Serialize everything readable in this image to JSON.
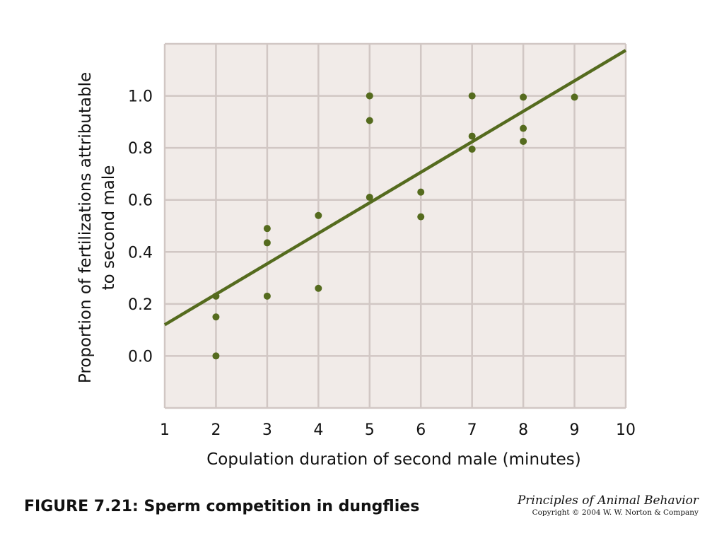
{
  "chart_data": {
    "type": "scatter",
    "xlabel": "Copulation duration of second male (minutes)",
    "ylabel_lines": [
      "Proportion of fertilizations attributable",
      "to second male"
    ],
    "xlim": [
      1,
      10
    ],
    "ylim": [
      -0.2,
      1.2
    ],
    "x_ticks": [
      1,
      2,
      3,
      4,
      5,
      6,
      7,
      8,
      9,
      10
    ],
    "y_ticks": [
      0.0,
      0.2,
      0.4,
      0.6,
      0.8,
      1.0
    ],
    "y_tick_labels": [
      "0.0",
      "0.2",
      "0.4",
      "0.6",
      "0.8",
      "1.0"
    ],
    "grid": true,
    "points": [
      {
        "x": 2,
        "y": 0.23
      },
      {
        "x": 2,
        "y": 0.15
      },
      {
        "x": 2,
        "y": 0.0
      },
      {
        "x": 3,
        "y": 0.49
      },
      {
        "x": 3,
        "y": 0.435
      },
      {
        "x": 3,
        "y": 0.23
      },
      {
        "x": 4,
        "y": 0.54
      },
      {
        "x": 4,
        "y": 0.26
      },
      {
        "x": 5,
        "y": 1.0
      },
      {
        "x": 5,
        "y": 0.905
      },
      {
        "x": 5,
        "y": 0.61
      },
      {
        "x": 6,
        "y": 0.63
      },
      {
        "x": 6,
        "y": 0.535
      },
      {
        "x": 7,
        "y": 1.0
      },
      {
        "x": 7,
        "y": 0.845
      },
      {
        "x": 7,
        "y": 0.795
      },
      {
        "x": 8,
        "y": 0.995
      },
      {
        "x": 8,
        "y": 0.875
      },
      {
        "x": 8,
        "y": 0.825
      },
      {
        "x": 9,
        "y": 0.995
      }
    ],
    "trend_line": {
      "x": [
        1,
        10
      ],
      "y": [
        0.12,
        1.175
      ]
    },
    "colors": {
      "point": "#556b1e",
      "line": "#556b1e",
      "plot_background": "#f1ebe8",
      "grid": "#d1c7c4"
    }
  },
  "caption": "FIGURE 7.21: Sperm competition in dungflies",
  "credit": {
    "title": "Principles of Animal Behavior",
    "copyright": "Copyright © 2004 W. W. Norton & Company"
  }
}
